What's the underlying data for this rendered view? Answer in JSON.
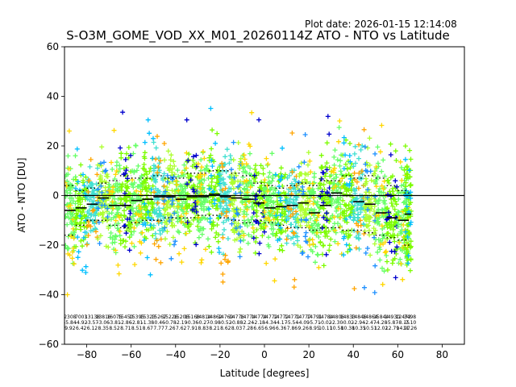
{
  "header": {
    "plot_date": "Plot date: 2026-01-15 12:14:08",
    "title": "S-O3M_GOME_VOD_XX_M01_20260114Z ATO - NTO vs Latitude"
  },
  "colors": {
    "scatter": [
      "#0000cd",
      "#1e90ff",
      "#00bfff",
      "#40e0d0",
      "#7cfc00",
      "#adff2f",
      "#66ff66",
      "#ffd700",
      "#ffa500"
    ],
    "median": "#000000",
    "zero_line": "#000000"
  },
  "chart_data": {
    "type": "scatter",
    "title": "S-O3M_GOME_VOD_XX_M01_20260114Z ATO - NTO vs Latitude",
    "xlabel": "Latitude [degrees]",
    "ylabel": "ATO - NTO [DU]",
    "xlim": [
      -90,
      90
    ],
    "ylim": [
      -60,
      60
    ],
    "xticks": [
      -80,
      -60,
      -40,
      -20,
      0,
      20,
      40,
      60,
      80
    ],
    "yticks": [
      -60,
      -40,
      -20,
      0,
      20,
      40,
      60
    ],
    "xtick_labels": [
      "−80",
      "−60",
      "−40",
      "−20",
      "0",
      "20",
      "40",
      "60",
      "80"
    ],
    "ytick_labels": [
      "−60",
      "−40",
      "−20",
      "0",
      "20",
      "40",
      "60"
    ],
    "zero_line": 0,
    "grid": false,
    "bins": [
      {
        "lat": -87.5,
        "count": "2308",
        "mean": "-5.84",
        "std": "9.92",
        "median": -6,
        "p_low": -16,
        "p_high": 4
      },
      {
        "lat": -82.5,
        "count": "7003",
        "mean": "-4.92",
        "std": "6.42",
        "median": -5,
        "p_low": -12,
        "p_high": 2
      },
      {
        "lat": -77.5,
        "count": "13138",
        "mean": "-3.57",
        "std": "6.12",
        "median": -3.5,
        "p_low": -10,
        "p_high": 3
      },
      {
        "lat": -72.5,
        "count": "13816",
        "mean": "-3.06",
        "std": "8.35",
        "median": -1,
        "p_low": -10,
        "p_high": 5
      },
      {
        "lat": -67.5,
        "count": "16075",
        "mean": "-3.81",
        "std": "8.52",
        "median": -4,
        "p_low": -12,
        "p_high": 6
      },
      {
        "lat": -62.5,
        "count": "15450",
        "mean": "-2.86",
        "std": "8.71",
        "median": -4,
        "p_low": -13,
        "p_high": 8
      },
      {
        "lat": -57.5,
        "count": "15395",
        "mean": "-2.81",
        "std": "8.51",
        "median": -2,
        "p_low": -11,
        "p_high": 7
      },
      {
        "lat": -52.5,
        "count": "15323",
        "mean": "-1.38",
        "std": "8.67",
        "median": -1.5,
        "p_low": -10,
        "p_high": 7
      },
      {
        "lat": -47.5,
        "count": "15267",
        "mean": "-0.46",
        "std": "7.77",
        "median": -0.5,
        "p_low": -10,
        "p_high": 8
      },
      {
        "lat": -42.5,
        "count": "15226",
        "mean": "-0.78",
        "std": "7.26",
        "median": -0.5,
        "p_low": -9,
        "p_high": 7
      },
      {
        "lat": -37.5,
        "count": "15206",
        "mean": "-2.19",
        "std": "7.62",
        "median": -1.5,
        "p_low": -9,
        "p_high": 7
      },
      {
        "lat": -32.5,
        "count": "15168",
        "mean": "-0.36",
        "std": "7.91",
        "median": -0.5,
        "p_low": -9,
        "p_high": 9
      },
      {
        "lat": -27.5,
        "count": "14814",
        "mean": "-0.27",
        "std": "8.83",
        "median": -0.5,
        "p_low": -8,
        "p_high": 9
      },
      {
        "lat": -22.5,
        "count": "14862",
        "mean": "-0.98",
        "std": "8.21",
        "median": 0.5,
        "p_low": -8,
        "p_high": 10
      },
      {
        "lat": -17.5,
        "count": "14769",
        "mean": "-0.52",
        "std": "8.62",
        "median": -0.5,
        "p_low": -9,
        "p_high": 10
      },
      {
        "lat": -12.5,
        "count": "14776",
        "mean": "-0.88",
        "std": "8.03",
        "median": -1,
        "p_low": -10,
        "p_high": 9
      },
      {
        "lat": -7.5,
        "count": "14774",
        "mean": "-2.24",
        "std": "7.28",
        "median": -1.5,
        "p_low": -11,
        "p_high": 8
      },
      {
        "lat": -2.5,
        "count": "14774",
        "mean": "-2.18",
        "std": "6.65",
        "median": -3,
        "p_low": -10,
        "p_high": 5
      },
      {
        "lat": 2.5,
        "count": "14772",
        "mean": "-4.34",
        "std": "6.96",
        "median": -5,
        "p_low": -11,
        "p_high": 4
      },
      {
        "lat": 7.5,
        "count": "14772",
        "mean": "-4.17",
        "std": "6.36",
        "median": -4.5,
        "p_low": -12,
        "p_high": 3
      },
      {
        "lat": 12.5,
        "count": "14771",
        "mean": "-5.54",
        "std": "7.86",
        "median": -4,
        "p_low": -13,
        "p_high": 4
      },
      {
        "lat": 17.5,
        "count": "14777",
        "mean": "-4.09",
        "std": "9.26",
        "median": -3,
        "p_low": -13,
        "p_high": 5
      },
      {
        "lat": 22.5,
        "count": "14791",
        "mean": "-5.71",
        "std": "8.95",
        "median": -7,
        "p_low": -14,
        "p_high": 4
      },
      {
        "lat": 27.5,
        "count": "14784",
        "mean": "-0.02",
        "std": "10.11",
        "median": -4,
        "p_low": -13,
        "p_high": 6
      },
      {
        "lat": 32.5,
        "count": "14806",
        "mean": "-2.30",
        "std": "10.58",
        "median": 1,
        "p_low": -13,
        "p_high": 6
      },
      {
        "lat": 37.5,
        "count": "14833",
        "mean": "-0.02",
        "std": "10.38",
        "median": 0,
        "p_low": -14,
        "p_high": 8
      },
      {
        "lat": 42.5,
        "count": "14846",
        "mean": "-2.94",
        "std": "10.35",
        "median": -2.5,
        "p_low": -14,
        "p_high": 7
      },
      {
        "lat": 47.5,
        "count": "14864",
        "mean": "-2.47",
        "std": "10.51",
        "median": -3.5,
        "p_low": -15,
        "p_high": 8
      },
      {
        "lat": 52.5,
        "count": "15844",
        "mean": "-4.28",
        "std": "12.02",
        "median": -7,
        "p_low": -16,
        "p_high": 7
      },
      {
        "lat": 57.5,
        "count": "14930",
        "mean": "-5.87",
        "std": "12.79",
        "median": -9,
        "p_low": -17,
        "p_high": 4
      },
      {
        "lat": 62.5,
        "count": "12472",
        "mean": "-8.15",
        "std": "14.97",
        "median": -10,
        "p_low": -18,
        "p_high": 2
      },
      {
        "lat": 65.5,
        "count": "3498",
        "mean": "-7.10",
        "std": "11.26",
        "median": -7.5,
        "p_low": -20,
        "p_high": 1
      }
    ]
  }
}
